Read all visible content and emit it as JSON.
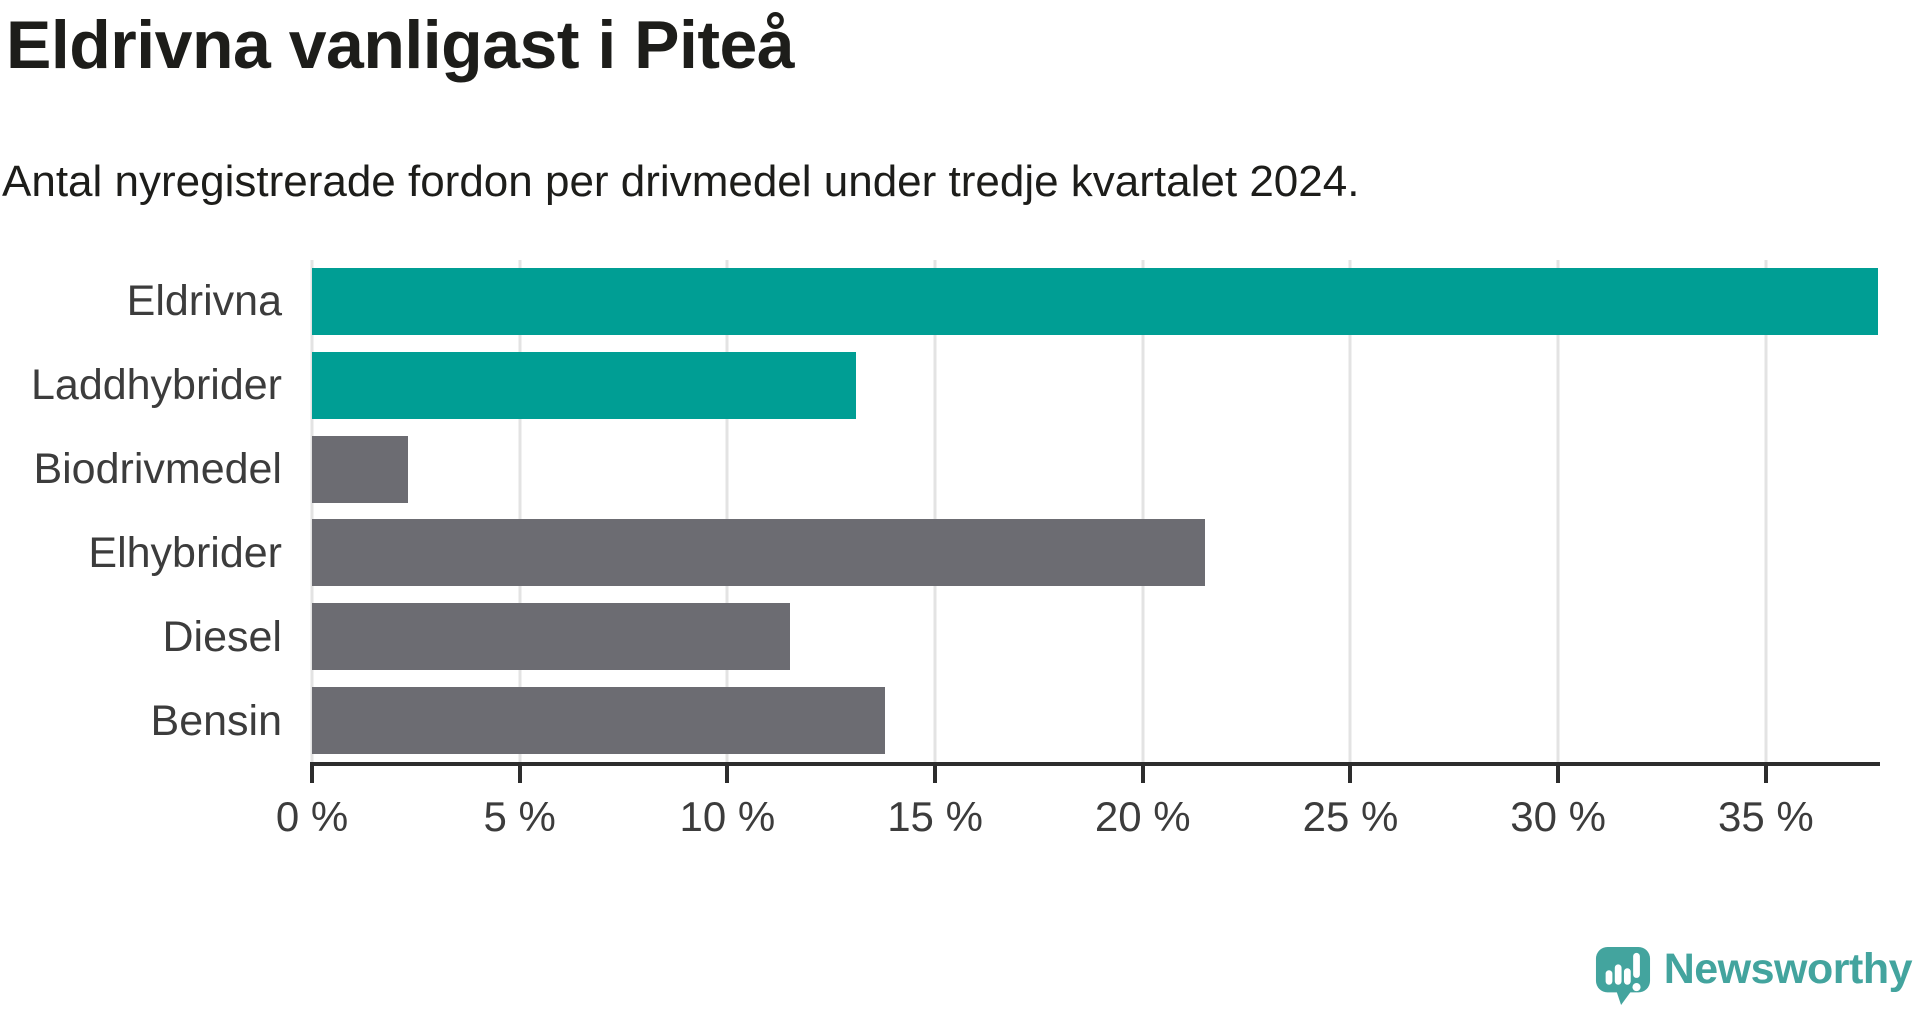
{
  "header": {
    "title": "Eldrivna vanligast i Piteå",
    "subtitle": "Antal nyregistrerade fordon per drivmedel under tredje kvartalet 2024."
  },
  "chart_data": {
    "type": "bar",
    "orientation": "horizontal",
    "title": "Eldrivna vanligast i Piteå",
    "subtitle": "Antal nyregistrerade fordon per drivmedel under tredje kvartalet 2024.",
    "categories": [
      "Eldrivna",
      "Laddhybrider",
      "Biodrivmedel",
      "Elhybrider",
      "Diesel",
      "Bensin"
    ],
    "values": [
      37.7,
      13.1,
      2.3,
      21.5,
      11.5,
      13.8
    ],
    "unit": "%",
    "bar_colors": [
      "#009e94",
      "#009e94",
      "#6c6c72",
      "#6c6c72",
      "#6c6c72",
      "#6c6c72"
    ],
    "highlight_color": "#009e94",
    "default_color": "#6c6c72",
    "xlim": [
      0,
      37.7
    ],
    "xticks": [
      0,
      5,
      10,
      15,
      20,
      25,
      30,
      35
    ],
    "xtick_labels": [
      "0 %",
      "5 %",
      "10 %",
      "15 %",
      "20 %",
      "25 %",
      "30 %",
      "35 %"
    ],
    "grid": true,
    "legend_position": "none",
    "gridline_color": "#e3e3e3",
    "axis_color": "#2d2d2d"
  },
  "footer": {
    "brand": "Newsworthy",
    "brand_color": "#43a49e"
  }
}
